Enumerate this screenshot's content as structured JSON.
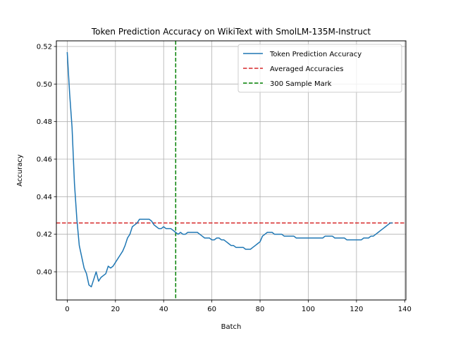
{
  "chart_data": {
    "type": "line",
    "title": "Token Prediction Accuracy on WikiText with SmolLM-135M-Instruct",
    "xlabel": "Batch",
    "ylabel": "Accuracy",
    "xlim": [
      -4.5,
      140.5
    ],
    "ylim": [
      0.385,
      0.523
    ],
    "xticks": [
      0,
      20,
      40,
      60,
      80,
      100,
      120,
      140
    ],
    "yticks": [
      0.4,
      0.42,
      0.44,
      0.46,
      0.48,
      0.5,
      0.52
    ],
    "xtick_labels": [
      "0",
      "20",
      "40",
      "60",
      "80",
      "100",
      "120",
      "140"
    ],
    "ytick_labels": [
      "0.40",
      "0.42",
      "0.44",
      "0.46",
      "0.48",
      "0.50",
      "0.52"
    ],
    "grid": true,
    "legend_position": "top-right",
    "series": [
      {
        "name": "Token Prediction Accuracy",
        "color": "#1f77b4",
        "x": [
          0,
          1,
          2,
          3,
          4,
          5,
          6,
          7,
          8,
          9,
          10,
          11,
          12,
          13,
          14,
          15,
          16,
          17,
          18,
          19,
          20,
          21,
          22,
          23,
          24,
          25,
          26,
          27,
          28,
          29,
          30,
          31,
          32,
          33,
          34,
          35,
          36,
          37,
          38,
          39,
          40,
          41,
          42,
          43,
          44,
          45,
          46,
          47,
          48,
          49,
          50,
          51,
          52,
          53,
          54,
          55,
          56,
          57,
          58,
          59,
          60,
          61,
          62,
          63,
          64,
          65,
          66,
          67,
          68,
          69,
          70,
          71,
          72,
          73,
          74,
          75,
          76,
          77,
          78,
          79,
          80,
          81,
          82,
          83,
          84,
          85,
          86,
          87,
          88,
          89,
          90,
          91,
          92,
          93,
          94,
          95,
          96,
          97,
          98,
          99,
          100,
          101,
          102,
          103,
          104,
          105,
          106,
          107,
          108,
          109,
          110,
          111,
          112,
          113,
          114,
          115,
          116,
          117,
          118,
          119,
          120,
          121,
          122,
          123,
          124,
          125,
          126,
          127,
          128,
          129,
          130,
          131,
          132,
          133,
          134,
          135
        ],
        "values": [
          0.517,
          0.495,
          0.477,
          0.447,
          0.428,
          0.414,
          0.408,
          0.402,
          0.399,
          0.393,
          0.392,
          0.396,
          0.4,
          0.395,
          0.397,
          0.398,
          0.399,
          0.403,
          0.402,
          0.403,
          0.405,
          0.407,
          0.409,
          0.411,
          0.414,
          0.418,
          0.42,
          0.424,
          0.425,
          0.426,
          0.428,
          0.428,
          0.428,
          0.428,
          0.428,
          0.427,
          0.425,
          0.424,
          0.423,
          0.423,
          0.424,
          0.423,
          0.423,
          0.423,
          0.422,
          0.421,
          0.42,
          0.421,
          0.42,
          0.42,
          0.421,
          0.421,
          0.421,
          0.421,
          0.421,
          0.42,
          0.419,
          0.418,
          0.418,
          0.418,
          0.417,
          0.417,
          0.418,
          0.418,
          0.417,
          0.417,
          0.416,
          0.415,
          0.414,
          0.414,
          0.413,
          0.413,
          0.413,
          0.413,
          0.412,
          0.412,
          0.412,
          0.413,
          0.414,
          0.415,
          0.416,
          0.419,
          0.42,
          0.421,
          0.421,
          0.421,
          0.42,
          0.42,
          0.42,
          0.42,
          0.419,
          0.419,
          0.419,
          0.419,
          0.419,
          0.418,
          0.418,
          0.418,
          0.418,
          0.418,
          0.418,
          0.418,
          0.418,
          0.418,
          0.418,
          0.418,
          0.418,
          0.419,
          0.419,
          0.419,
          0.419,
          0.418,
          0.418,
          0.418,
          0.418,
          0.418,
          0.417,
          0.417,
          0.417,
          0.417,
          0.417,
          0.417,
          0.417,
          0.418,
          0.418,
          0.418,
          0.419,
          0.419,
          0.42,
          0.421,
          0.422,
          0.423,
          0.424,
          0.425,
          0.426,
          0.426
        ]
      },
      {
        "name": "Averaged Accuracies",
        "color": "#d62728",
        "style": "dashed",
        "orientation": "horizontal",
        "y": 0.426
      },
      {
        "name": "300 Sample Mark",
        "color": "#008000",
        "style": "dashed",
        "orientation": "vertical",
        "x": 45
      }
    ]
  }
}
